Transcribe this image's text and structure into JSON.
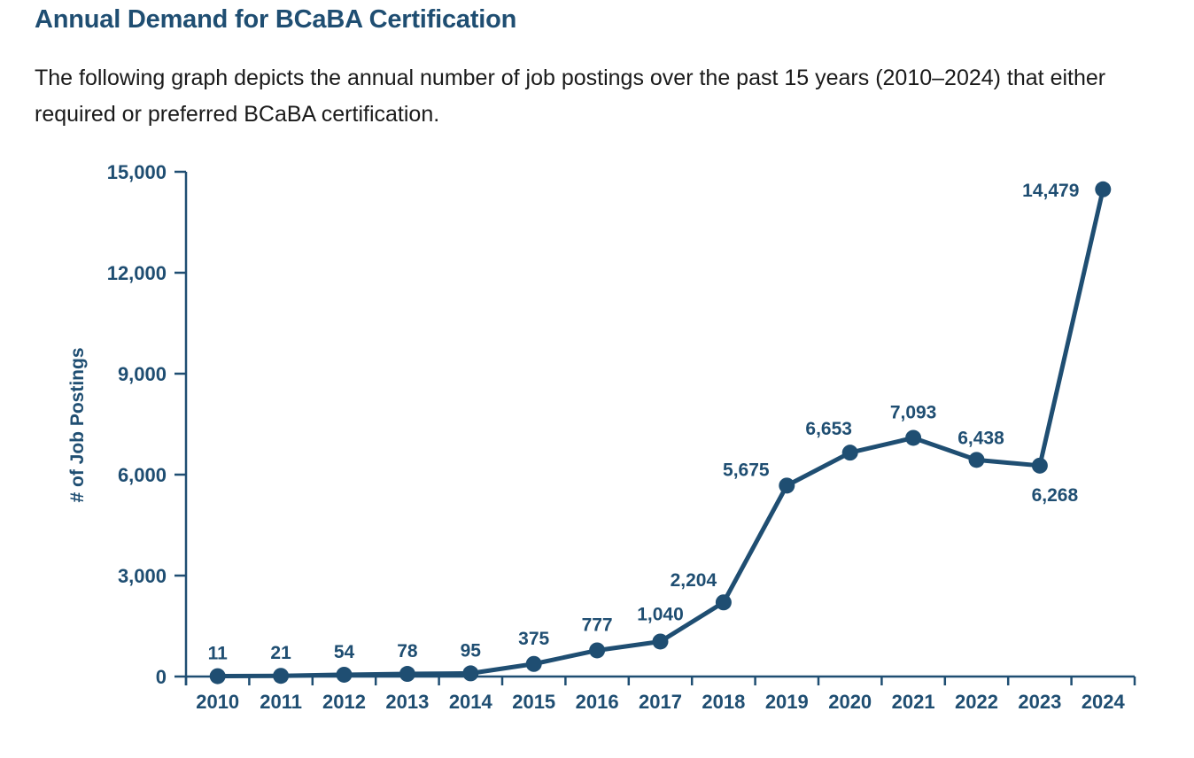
{
  "heading": "Annual Demand for BCaBA Certification",
  "intro": "The following graph depicts the annual number of job postings over the past 15 years (2010–2024) that either required or preferred BCaBA certification.",
  "colors": {
    "series": "#1f4e72",
    "text": "#1a1a1a"
  },
  "chart_data": {
    "type": "line",
    "title": "",
    "xlabel": "",
    "ylabel": "# of Job Postings",
    "ylim": [
      0,
      15000
    ],
    "yticks": [
      0,
      3000,
      6000,
      9000,
      12000,
      15000
    ],
    "ytick_labels": [
      "0",
      "3,000",
      "6,000",
      "9,000",
      "12,000",
      "15,000"
    ],
    "grid": false,
    "categories": [
      "2010",
      "2011",
      "2012",
      "2013",
      "2014",
      "2015",
      "2016",
      "2017",
      "2018",
      "2019",
      "2020",
      "2021",
      "2022",
      "2023",
      "2024"
    ],
    "values": [
      11,
      21,
      54,
      78,
      95,
      375,
      777,
      1040,
      2204,
      5675,
      6653,
      7093,
      6438,
      6268,
      14479
    ],
    "data_labels": [
      "11",
      "21",
      "54",
      "78",
      "95",
      "375",
      "777",
      "1,040",
      "2,204",
      "5,675",
      "6,653",
      "7,093",
      "6,438",
      "6,268",
      "14,479"
    ]
  }
}
